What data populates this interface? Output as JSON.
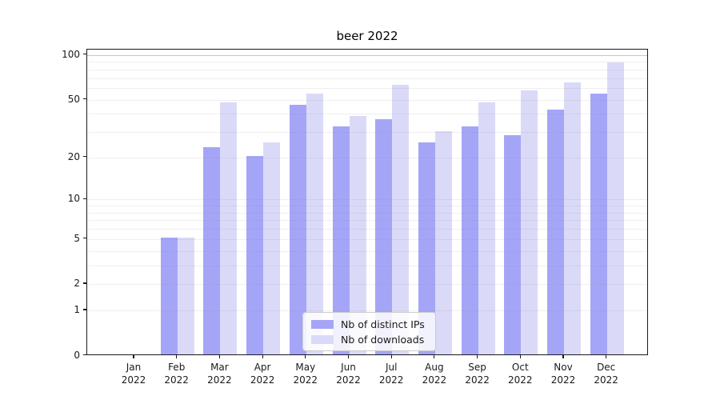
{
  "title": "beer 2022",
  "chart_data": {
    "type": "bar",
    "title": "beer 2022",
    "xlabel": "",
    "ylabel": "",
    "y_scale": "log1p",
    "ylim": [
      0,
      110
    ],
    "grid": true,
    "legend_position": "lower center",
    "categories": [
      "Jan 2022",
      "Feb 2022",
      "Mar 2022",
      "Apr 2022",
      "May 2022",
      "Jun 2022",
      "Jul 2022",
      "Aug 2022",
      "Sep 2022",
      "Oct 2022",
      "Nov 2022",
      "Dec 2022"
    ],
    "series": [
      {
        "name": "Nb of distinct IPs",
        "color": "#a5a5f8",
        "values": [
          0,
          5,
          23,
          20,
          45,
          32,
          36,
          25,
          32,
          28,
          42,
          54
        ]
      },
      {
        "name": "Nb of downloads",
        "color": "#dadaf8",
        "values": [
          0,
          5,
          47,
          25,
          54,
          38,
          62,
          30,
          47,
          57,
          64,
          88
        ]
      }
    ],
    "y_ticks": [
      0,
      1,
      2,
      5,
      10,
      20,
      50,
      100
    ],
    "y_minor_gridlines": [
      3,
      4,
      6,
      7,
      8,
      9,
      30,
      40,
      60,
      70,
      80,
      90
    ]
  }
}
